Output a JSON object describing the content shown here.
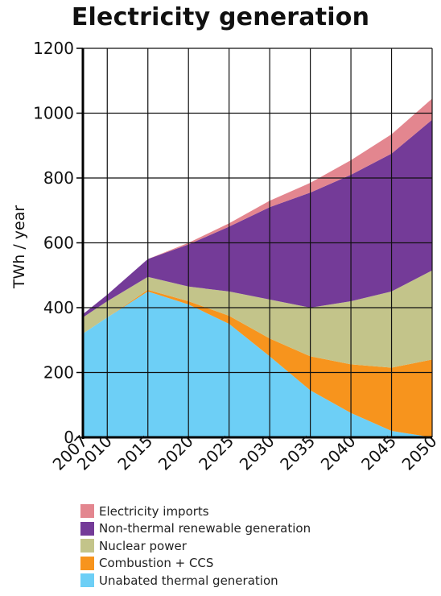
{
  "chart_data": {
    "type": "area",
    "stacked": true,
    "title": "Electricity generation",
    "xlabel": "",
    "ylabel": "TWh / year",
    "x": [
      2007,
      2010,
      2015,
      2020,
      2025,
      2030,
      2035,
      2040,
      2045,
      2050
    ],
    "x_tick_labels": [
      "2007",
      "2010",
      "2015",
      "2020",
      "2025",
      "2030",
      "2035",
      "2040",
      "2045",
      "2050"
    ],
    "ylim": [
      0,
      1200
    ],
    "y_ticks": [
      0,
      200,
      400,
      600,
      800,
      1000,
      1200
    ],
    "grid": true,
    "legend_position": "bottom",
    "series": [
      {
        "name": "Unabated thermal generation",
        "color": "#6dcff6",
        "values": [
          320,
          370,
          450,
          410,
          350,
          250,
          145,
          75,
          20,
          0
        ]
      },
      {
        "name": "Combustion + CCS",
        "color": "#f7941d",
        "values": [
          0,
          0,
          5,
          10,
          25,
          55,
          105,
          150,
          195,
          240
        ]
      },
      {
        "name": "Nuclear power",
        "color": "#c3c48a",
        "values": [
          50,
          50,
          40,
          45,
          75,
          120,
          150,
          195,
          235,
          275
        ]
      },
      {
        "name": "Non-thermal renewable generation",
        "color": "#743b98",
        "values": [
          10,
          20,
          55,
          130,
          200,
          285,
          355,
          390,
          425,
          465
        ]
      },
      {
        "name": "Electricity imports",
        "color": "#e3868f",
        "values": [
          0,
          0,
          0,
          5,
          10,
          20,
          30,
          45,
          60,
          65
        ]
      }
    ]
  },
  "legend_items": [
    {
      "label": "Electricity imports",
      "color": "#e3868f"
    },
    {
      "label": "Non-thermal renewable generation",
      "color": "#743b98"
    },
    {
      "label": "Nuclear power",
      "color": "#c3c48a"
    },
    {
      "label": "Combustion + CCS",
      "color": "#f7941d"
    },
    {
      "label": "Unabated thermal generation",
      "color": "#6dcff6"
    }
  ]
}
